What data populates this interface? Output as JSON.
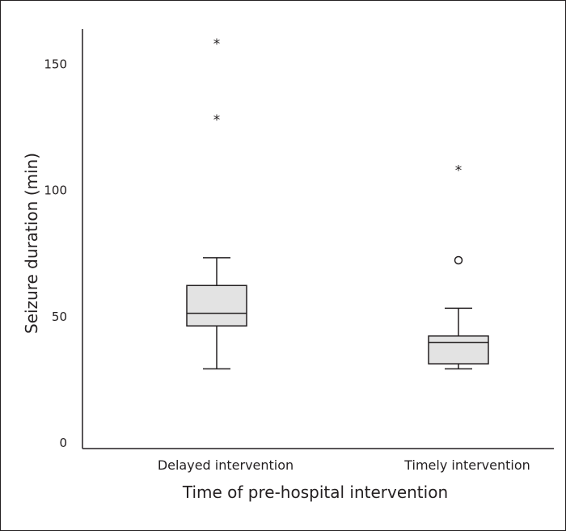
{
  "chart_data": {
    "type": "boxplot",
    "title": "",
    "xlabel": "Time of pre-hospital intervention",
    "ylabel": "Seizure duration (min)",
    "ylim": [
      0,
      165
    ],
    "yticks": [
      0,
      50,
      100,
      150
    ],
    "grid": false,
    "legend": "none",
    "categories": [
      "Delayed intervention",
      "Timely intervention"
    ],
    "boxes": [
      {
        "category": "Delayed intervention",
        "whisker_low": 29,
        "q1": 46,
        "median": 51,
        "q3": 62,
        "whisker_high": 73,
        "outliers": [],
        "extreme_outliers": [
          129,
          159
        ]
      },
      {
        "category": "Timely intervention",
        "whisker_low": 29,
        "q1": 31,
        "median": 39.5,
        "q3": 42,
        "whisker_high": 53,
        "outliers": [
          72
        ],
        "extreme_outliers": [
          109
        ]
      }
    ],
    "markers": {
      "outlier": "circle",
      "extreme": "*"
    },
    "colors": {
      "box_fill": "#e3e3e3",
      "stroke": "#231f20"
    }
  }
}
